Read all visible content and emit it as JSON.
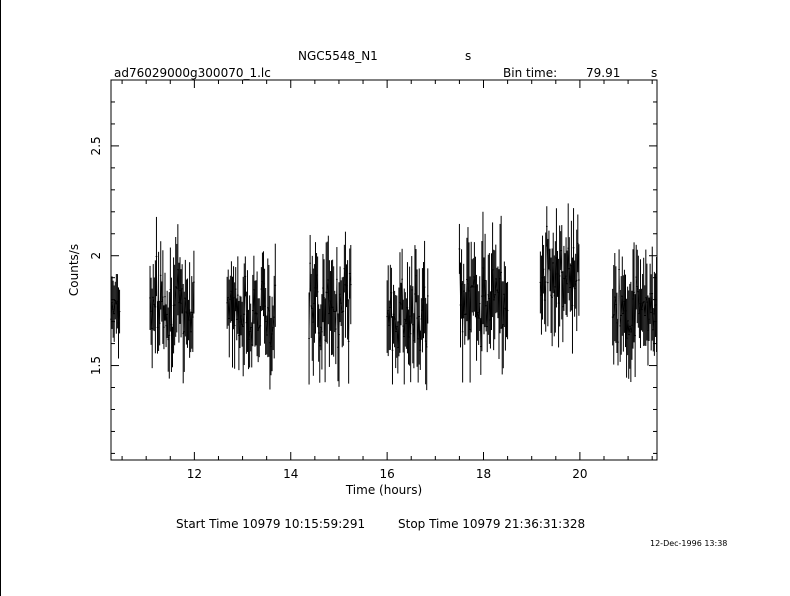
{
  "header": {
    "object_name": "NGC5548_N1",
    "object_unit": "s",
    "file_name": "ad76029000g300070_1.lc",
    "bin_time_label": "Bin time:",
    "bin_time_value": "79.91",
    "bin_time_unit": "s"
  },
  "footer": {
    "start_time": "Start Time 10979 10:15:59:291",
    "stop_time": "Stop Time 10979 21:36:31:328",
    "date_stamp": "12-Dec-1996 13:38"
  },
  "chart_data": {
    "type": "scatter",
    "xlabel": "Time (hours)",
    "ylabel": "Counts/s",
    "xlim": [
      10.27,
      21.6
    ],
    "ylim": [
      1.07,
      2.8
    ],
    "xticks": [
      12,
      14,
      16,
      18,
      20
    ],
    "yticks": [
      1.5,
      2,
      2.5
    ],
    "error_bars": true,
    "segments": [
      {
        "start": 10.27,
        "end": 10.45,
        "mean": 1.78,
        "spread": 0.13
      },
      {
        "start": 11.08,
        "end": 12.0,
        "mean": 1.78,
        "spread": 0.16
      },
      {
        "start": 12.68,
        "end": 13.68,
        "mean": 1.75,
        "spread": 0.16
      },
      {
        "start": 14.38,
        "end": 15.25,
        "mean": 1.78,
        "spread": 0.17
      },
      {
        "start": 16.0,
        "end": 16.85,
        "mean": 1.72,
        "spread": 0.16
      },
      {
        "start": 17.5,
        "end": 18.52,
        "mean": 1.8,
        "spread": 0.18
      },
      {
        "start": 19.18,
        "end": 20.0,
        "mean": 1.94,
        "spread": 0.16
      },
      {
        "start": 20.68,
        "end": 21.6,
        "mean": 1.77,
        "spread": 0.16
      }
    ]
  }
}
